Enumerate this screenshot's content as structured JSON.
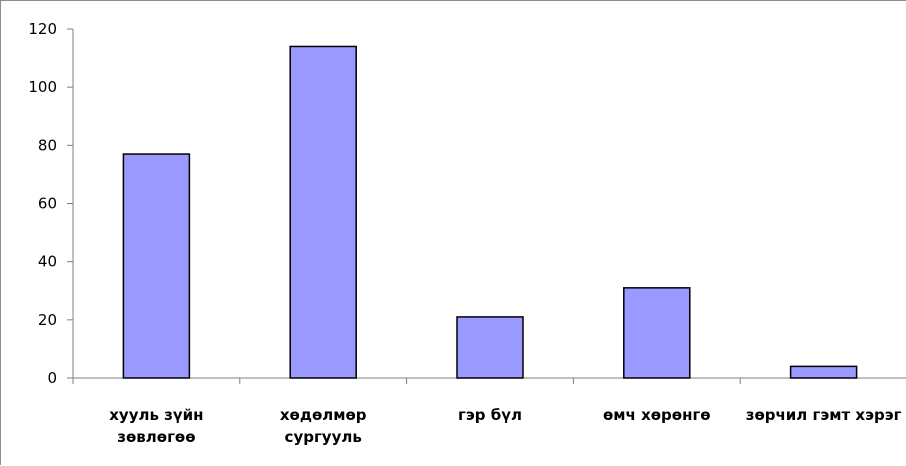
{
  "chart_data": {
    "type": "bar",
    "title": "",
    "xlabel": "",
    "ylabel": "",
    "categories": [
      [
        "хууль зүйн",
        "зөвлөгөө"
      ],
      [
        "хөдөлмөр",
        "сургууль"
      ],
      [
        "гэр бүл"
      ],
      [
        "өмч хөрөнгө"
      ],
      [
        "зөрчил гэмт хэрэг"
      ]
    ],
    "values": [
      77,
      114,
      21,
      31,
      4
    ],
    "ylim": [
      0,
      120
    ],
    "yticks": [
      0,
      20,
      40,
      60,
      80,
      100,
      120
    ],
    "grid": false,
    "legend": "none",
    "colors": {
      "bar_fill": "#9999ff",
      "bar_stroke": "#000000",
      "axis": "#808080"
    }
  }
}
